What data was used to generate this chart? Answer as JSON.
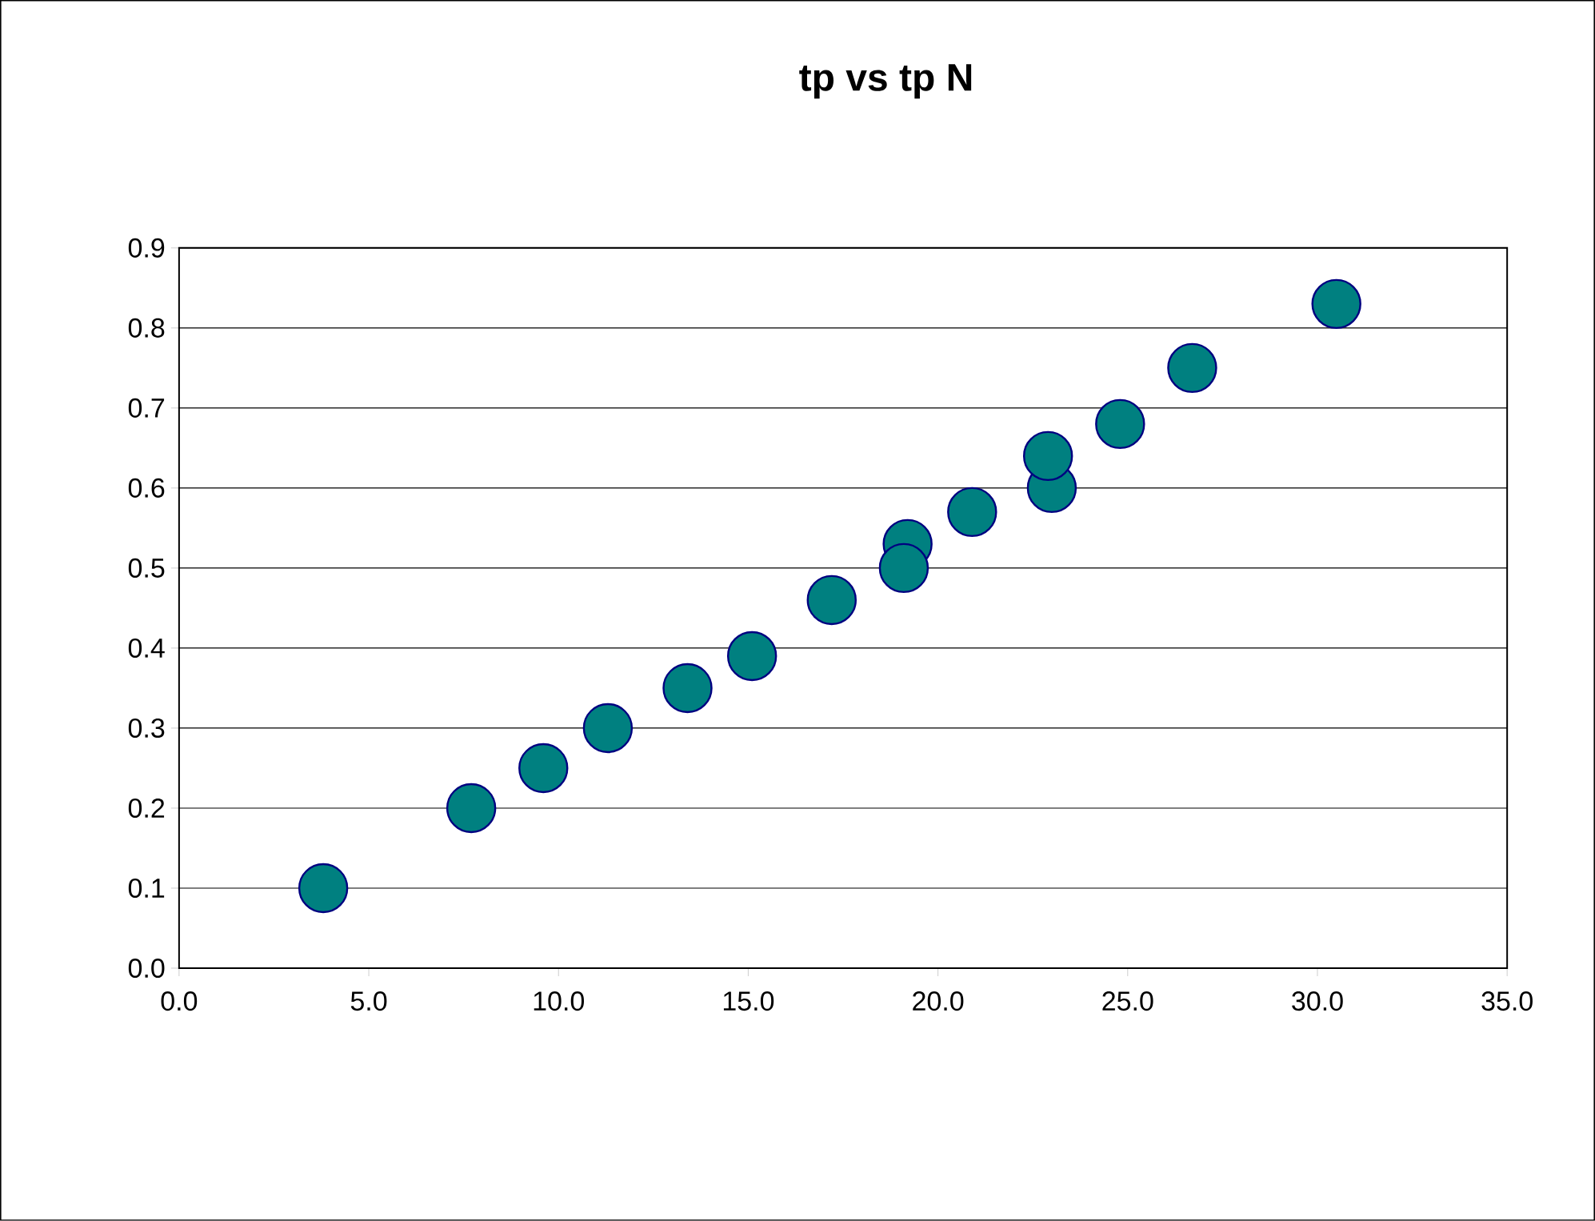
{
  "chart_data": {
    "type": "scatter",
    "title": "tp  vs  tp N",
    "x": [
      3.8,
      7.7,
      9.6,
      11.3,
      13.4,
      15.1,
      17.2,
      19.2,
      19.1,
      20.9,
      23.0,
      22.9,
      24.8,
      26.7,
      30.5
    ],
    "series": [
      {
        "color": "#008080",
        "values": [
          0.1,
          0.2,
          0.25,
          0.3,
          0.35,
          0.39,
          0.46,
          0.53,
          0.5,
          0.57,
          0.6,
          0.64,
          0.68,
          0.75,
          0.83
        ]
      }
    ],
    "xlim": [
      0,
      35
    ],
    "xticks": [
      {
        "value": 0,
        "label": "0.0"
      },
      {
        "value": 5,
        "label": "5.0"
      },
      {
        "value": 10,
        "label": "10.0"
      },
      {
        "value": 15,
        "label": "15.0"
      },
      {
        "value": 20,
        "label": "20.0"
      },
      {
        "value": 25,
        "label": "25.0"
      },
      {
        "value": 30,
        "label": "30.0"
      },
      {
        "value": 35,
        "label": "35.0"
      }
    ],
    "ylim": [
      0,
      0.9
    ],
    "yticks": [
      {
        "value": 0,
        "label": "0.0"
      },
      {
        "value": 0.1,
        "label": "0.1"
      },
      {
        "value": 0.2,
        "label": "0.2"
      },
      {
        "value": 0.3,
        "label": "0.3"
      },
      {
        "value": 0.4,
        "label": "0.4"
      },
      {
        "value": 0.5,
        "label": "0.5"
      },
      {
        "value": 0.6,
        "label": "0.6"
      },
      {
        "value": 0.7,
        "label": "0.7"
      },
      {
        "value": 0.8,
        "label": "0.8"
      },
      {
        "value": 0.9,
        "label": "0.9"
      }
    ],
    "grid": "y",
    "marker": "circle",
    "legend": false
  }
}
